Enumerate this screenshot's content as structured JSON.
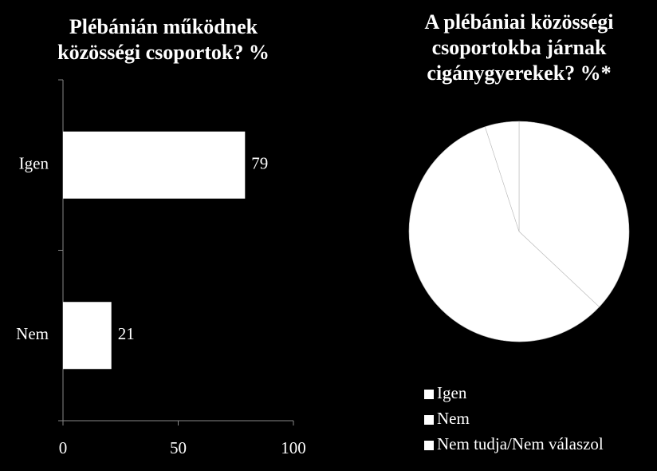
{
  "chart_data": [
    {
      "type": "bar",
      "orientation": "horizontal",
      "title": "Plébánián működnek közösségi csoportok? %",
      "categories": [
        "Igen",
        "Nem"
      ],
      "values": [
        79,
        21
      ],
      "color": "#ffffff",
      "xlim": [
        0,
        100
      ],
      "xticks": [
        0,
        50,
        100
      ]
    },
    {
      "type": "pie",
      "title": "A plébániai közösségi csoportokba járnak cigánygyerekek? %*",
      "categories": [
        "Igen",
        "Nem",
        "Nem tudja/Nem válaszol"
      ],
      "values": [
        37,
        58,
        5
      ],
      "colors": [
        "#ffffff",
        "#ffffff",
        "#ffffff"
      ],
      "legend": "bottom"
    }
  ]
}
